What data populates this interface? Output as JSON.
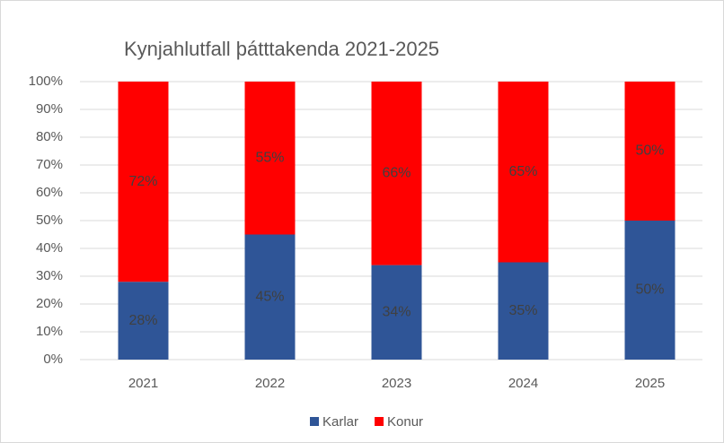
{
  "chart_data": {
    "type": "stacked_bar",
    "title": "Kynjahlutfall þátttakenda 2021-2025",
    "categories": [
      "2021",
      "2022",
      "2023",
      "2024",
      "2025"
    ],
    "series": [
      {
        "name": "Karlar",
        "color": "#2f5597",
        "values": [
          28,
          45,
          34,
          35,
          50
        ],
        "value_labels": [
          "28%",
          "45%",
          "34%",
          "35%",
          "50%"
        ]
      },
      {
        "name": "Konur",
        "color": "#ff0000",
        "values": [
          72,
          55,
          66,
          65,
          50
        ],
        "value_labels": [
          "72%",
          "55%",
          "66%",
          "65%",
          "50%"
        ]
      }
    ],
    "ylim": [
      0,
      100
    ],
    "yticks": [
      {
        "value": 0,
        "label": "0%"
      },
      {
        "value": 10,
        "label": "10%"
      },
      {
        "value": 20,
        "label": "20%"
      },
      {
        "value": 30,
        "label": "30%"
      },
      {
        "value": 40,
        "label": "40%"
      },
      {
        "value": 50,
        "label": "50%"
      },
      {
        "value": 60,
        "label": "60%"
      },
      {
        "value": 70,
        "label": "70%"
      },
      {
        "value": 80,
        "label": "80%"
      },
      {
        "value": 90,
        "label": "90%"
      },
      {
        "value": 100,
        "label": "100%"
      }
    ],
    "grid": true,
    "legend": "bottom"
  }
}
